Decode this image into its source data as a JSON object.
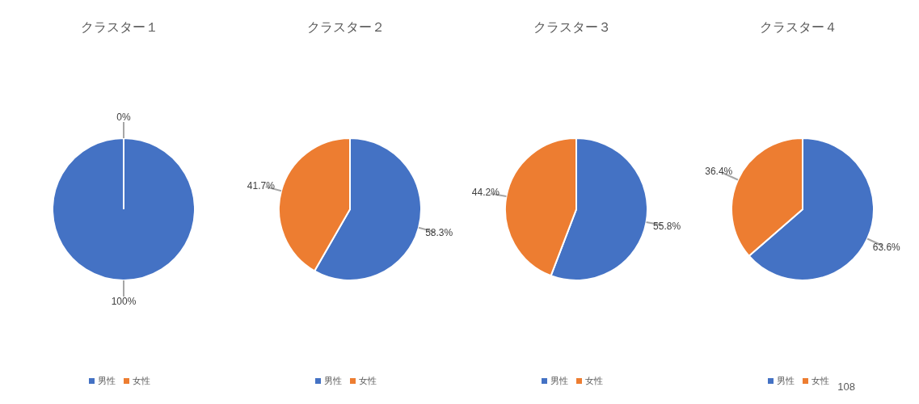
{
  "chart_data": [
    {
      "type": "pie",
      "title": "クラスター１",
      "categories": [
        "男性",
        "女性"
      ],
      "values": [
        100,
        0
      ],
      "colors": [
        "#4472c4",
        "#ed7d31"
      ],
      "value_labels": [
        "100%",
        "0%"
      ],
      "legend": "bottom"
    },
    {
      "type": "pie",
      "title": "クラスター２",
      "categories": [
        "男性",
        "女性"
      ],
      "values": [
        58.3,
        41.7
      ],
      "colors": [
        "#4472c4",
        "#ed7d31"
      ],
      "value_labels": [
        "58.3%",
        "41.7%"
      ],
      "legend": "bottom"
    },
    {
      "type": "pie",
      "title": "クラスター３",
      "categories": [
        "男性",
        "女性"
      ],
      "values": [
        55.8,
        44.2
      ],
      "colors": [
        "#4472c4",
        "#ed7d31"
      ],
      "value_labels": [
        "55.8%",
        "44.2%"
      ],
      "legend": "bottom"
    },
    {
      "type": "pie",
      "title": "クラスター４",
      "categories": [
        "男性",
        "女性"
      ],
      "values": [
        63.6,
        36.4
      ],
      "colors": [
        "#4472c4",
        "#ed7d31"
      ],
      "value_labels": [
        "63.6%",
        "36.4%"
      ],
      "legend": "bottom",
      "annotations": [
        "108"
      ]
    }
  ]
}
